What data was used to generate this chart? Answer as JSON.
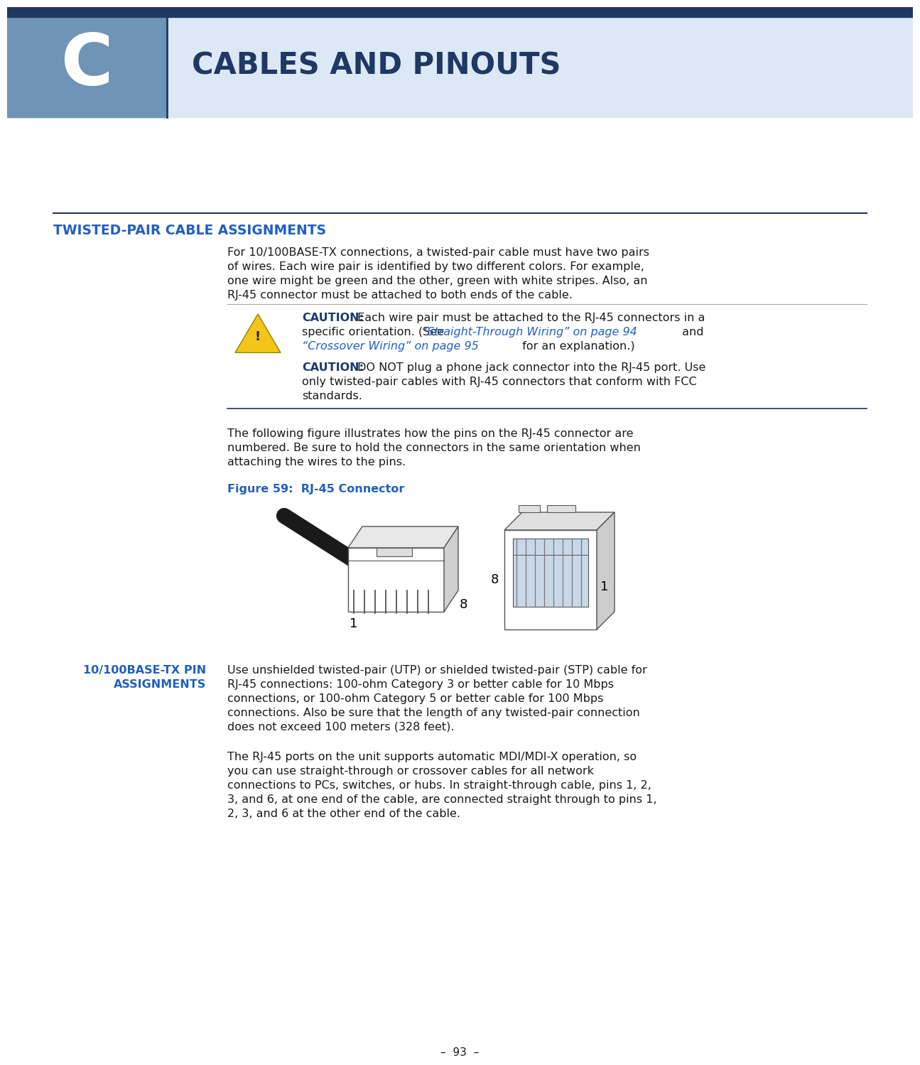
{
  "white_bg": "#ffffff",
  "header_dark_blue": "#1f3864",
  "header_light_blue": "#dce8f5",
  "header_steel_blue": "#7094b8",
  "title_text": "CABLES AND PINOUTS",
  "chapter_letter": "C",
  "section1_title": "TWISTED-PAIR CABLE ASSIGNMENTS",
  "section1_body_l1": "For 10/100BASE-TX connections, a twisted-pair cable must have two pairs",
  "section1_body_l2": "of wires. Each wire pair is identified by two different colors. For example,",
  "section1_body_l3": "one wire might be green and the other, green with white stripes. Also, an",
  "section1_body_l4": "RJ-45 connector must be attached to both ends of the cable.",
  "c1_lbl": "CAUTION:",
  "c1_l1": " Each wire pair must be attached to the RJ-45 connectors in a",
  "c1_l2": "specific orientation. (See “Straight-Through Wiring” on page 94 and",
  "c1_l2a": "specific orientation. (See ",
  "c1_l2b": "“Straight-Through Wiring” on page 94",
  "c1_l2c": " and",
  "c1_l3a": "“Crossover Wiring” on page 95",
  "c1_l3b": " for an explanation.)",
  "c2_lbl": "CAUTION:",
  "c2_l1": " DO NOT plug a phone jack connector into the RJ-45 port. Use",
  "c2_l2": "only twisted-pair cables with RJ-45 connectors that conform with FCC",
  "c2_l3": "standards.",
  "fig_intro_l1": "The following figure illustrates how the pins on the RJ-45 connector are",
  "fig_intro_l2": "numbered. Be sure to hold the connectors in the same orientation when",
  "fig_intro_l3": "attaching the wires to the pins.",
  "figure_label": "Figure 59:  RJ-45 Connector",
  "section2_title_l1": "10/100BASE-TX PIN",
  "section2_title_l2": "ASSIGNMENTS",
  "s2_b1_l1": "Use unshielded twisted-pair (UTP) or shielded twisted-pair (STP) cable for",
  "s2_b1_l2": "RJ-45 connections: 100-ohm Category 3 or better cable for 10 Mbps",
  "s2_b1_l3": "connections, or 100-ohm Category 5 or better cable for 100 Mbps",
  "s2_b1_l4": "connections. Also be sure that the length of any twisted-pair connection",
  "s2_b1_l5": "does not exceed 100 meters (328 feet).",
  "s2_b2_l1": "The RJ-45 ports on the unit supports automatic MDI/MDI-X operation, so",
  "s2_b2_l2": "you can use straight-through or crossover cables for all network",
  "s2_b2_l3": "connections to PCs, switches, or hubs. In straight-through cable, pins 1, 2,",
  "s2_b2_l4": "3, and 6, at one end of the cable, are connected straight through to pins 1,",
  "s2_b2_l5": "2, 3, and 6 at the other end of the cable.",
  "footer_text": "–  93  –",
  "dark_blue": "#1f3864",
  "link_blue": "#2060c0",
  "caution_blue": "#1a3a6b",
  "text_color": "#1a1a1a",
  "line_color": "#1f3864",
  "gray_line": "#aaaaaa"
}
